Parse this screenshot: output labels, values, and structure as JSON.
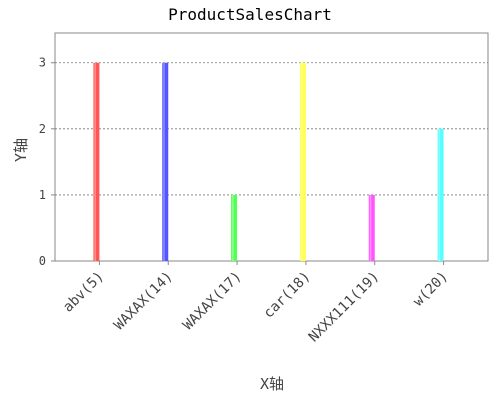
{
  "chart_data": {
    "type": "bar",
    "title": "ProductSalesChart",
    "xlabel": "X轴",
    "ylabel": "Y轴",
    "categories": [
      "abv(5)",
      "WAXAX(14)",
      "WAXAX(17)",
      "car(18)",
      "NXXX111(19)",
      "w(20)"
    ],
    "values": [
      3,
      3,
      1,
      3,
      1,
      2
    ],
    "colors": [
      "#ff5555",
      "#5555ff",
      "#55ff55",
      "#ffff55",
      "#ff55ff",
      "#55ffff"
    ],
    "ylim": [
      0,
      3.45
    ],
    "yticks": [
      "0",
      "1",
      "2",
      "3"
    ],
    "grid": true,
    "legend": "none"
  }
}
